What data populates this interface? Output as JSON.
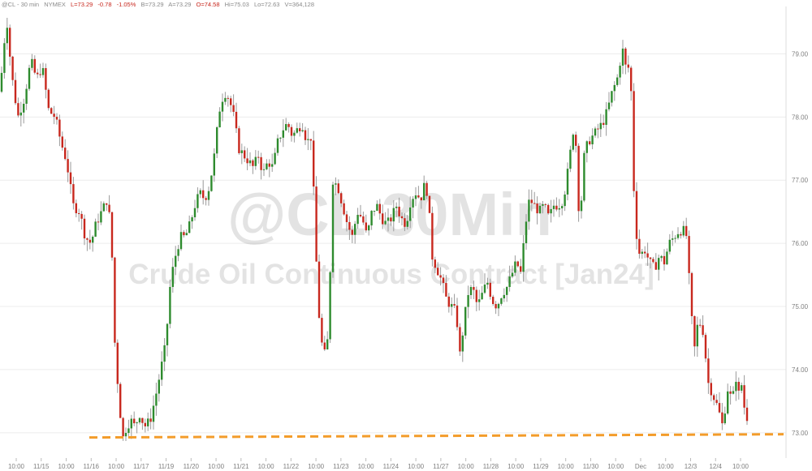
{
  "header": {
    "symbol": "@CL - 30 min",
    "exchange": "NYMEX",
    "last": "L=73.29",
    "change": "-0.78",
    "change_pct": "-1.05%",
    "bid": "B=73.29",
    "ask": "A=73.29",
    "open": "O=74.58",
    "high": "Hi=75.03",
    "low": "Lo=72.63",
    "volume": "V=364,128"
  },
  "watermark": {
    "line1": "@CL 30Min",
    "line2": "Crude Oil Continuous Contract [Jan24]"
  },
  "colors": {
    "up": "#2e8b2e",
    "down": "#c8281e",
    "wick": "#9a9a9a",
    "support": "#f39c2a",
    "grid": "#ececec",
    "axis_text": "#7f7f7f"
  },
  "chart_data": {
    "type": "candlestick",
    "ylim": [
      72.6,
      79.75
    ],
    "yticks": [
      "73.00",
      "74.00",
      "75.00",
      "76.00",
      "77.00",
      "78.00",
      "79.00"
    ],
    "xticks": [
      "10:00",
      "11/15",
      "10:00",
      "11/16",
      "10:00",
      "11/17",
      "11/19",
      "11/20",
      "10:00",
      "11/21",
      "10:00",
      "11/22",
      "10:00",
      "11/23",
      "10:00",
      "11/24",
      "10:00",
      "11/27",
      "10:00",
      "11/28",
      "10:00",
      "11/29",
      "10:00",
      "11/30",
      "10:00",
      "Dec",
      "10:00",
      "12/3",
      "12/4",
      "10:00"
    ],
    "support_level": 72.97,
    "price_path": [
      [
        0,
        78.4
      ],
      [
        8,
        79.6
      ],
      [
        14,
        78.7
      ],
      [
        22,
        78.0
      ],
      [
        30,
        78.3
      ],
      [
        38,
        78.9
      ],
      [
        45,
        78.6
      ],
      [
        52,
        78.8
      ],
      [
        60,
        78.1
      ],
      [
        68,
        78.0
      ],
      [
        75,
        77.6
      ],
      [
        82,
        77.3
      ],
      [
        90,
        76.6
      ],
      [
        98,
        76.5
      ],
      [
        105,
        76.1
      ],
      [
        112,
        76.0
      ],
      [
        118,
        76.3
      ],
      [
        125,
        76.5
      ],
      [
        132,
        76.7
      ],
      [
        137,
        76.2
      ],
      [
        141,
        74.5
      ],
      [
        146,
        73.6
      ],
      [
        151,
        72.9
      ],
      [
        156,
        73.1
      ],
      [
        161,
        73.2
      ],
      [
        166,
        73.1
      ],
      [
        172,
        73.3
      ],
      [
        178,
        73.1
      ],
      [
        185,
        73.2
      ],
      [
        192,
        73.6
      ],
      [
        198,
        74.0
      ],
      [
        204,
        74.4
      ],
      [
        210,
        75.4
      ],
      [
        216,
        75.8
      ],
      [
        222,
        76.1
      ],
      [
        228,
        76.1
      ],
      [
        234,
        76.3
      ],
      [
        240,
        76.6
      ],
      [
        246,
        76.8
      ],
      [
        252,
        76.7
      ],
      [
        258,
        76.9
      ],
      [
        264,
        77.4
      ],
      [
        270,
        78.1
      ],
      [
        276,
        78.4
      ],
      [
        282,
        78.3
      ],
      [
        288,
        78.0
      ],
      [
        294,
        77.5
      ],
      [
        300,
        77.4
      ],
      [
        306,
        77.3
      ],
      [
        312,
        77.2
      ],
      [
        318,
        77.4
      ],
      [
        324,
        77.1
      ],
      [
        330,
        77.3
      ],
      [
        336,
        77.2
      ],
      [
        342,
        77.6
      ],
      [
        348,
        77.8
      ],
      [
        354,
        77.9
      ],
      [
        360,
        77.7
      ],
      [
        366,
        77.8
      ],
      [
        372,
        77.9
      ],
      [
        378,
        77.6
      ],
      [
        384,
        77.7
      ],
      [
        388,
        76.1
      ],
      [
        394,
        74.6
      ],
      [
        399,
        74.2
      ],
      [
        404,
        74.5
      ],
      [
        410,
        77.0
      ],
      [
        416,
        76.9
      ],
      [
        422,
        76.6
      ],
      [
        428,
        76.3
      ],
      [
        434,
        76.1
      ],
      [
        440,
        76.5
      ],
      [
        446,
        76.4
      ],
      [
        452,
        76.1
      ],
      [
        458,
        76.5
      ],
      [
        464,
        76.6
      ],
      [
        470,
        76.4
      ],
      [
        476,
        76.3
      ],
      [
        482,
        76.4
      ],
      [
        488,
        76.6
      ],
      [
        494,
        76.4
      ],
      [
        500,
        76.3
      ],
      [
        506,
        76.7
      ],
      [
        512,
        76.8
      ],
      [
        518,
        76.7
      ],
      [
        522,
        76.9
      ],
      [
        527,
        76.8
      ],
      [
        532,
        75.8
      ],
      [
        538,
        75.6
      ],
      [
        544,
        75.4
      ],
      [
        550,
        75.1
      ],
      [
        556,
        75.0
      ],
      [
        562,
        74.9
      ],
      [
        566,
        74.2
      ],
      [
        570,
        74.6
      ],
      [
        576,
        75.2
      ],
      [
        582,
        75.3
      ],
      [
        588,
        75.0
      ],
      [
        594,
        75.2
      ],
      [
        600,
        75.4
      ],
      [
        606,
        75.1
      ],
      [
        612,
        75.0
      ],
      [
        618,
        75.2
      ],
      [
        624,
        75.3
      ],
      [
        630,
        75.5
      ],
      [
        636,
        75.7
      ],
      [
        642,
        75.5
      ],
      [
        646,
        76.2
      ],
      [
        652,
        76.7
      ],
      [
        658,
        76.6
      ],
      [
        664,
        76.5
      ],
      [
        670,
        76.6
      ],
      [
        676,
        76.4
      ],
      [
        682,
        76.6
      ],
      [
        688,
        76.6
      ],
      [
        694,
        76.7
      ],
      [
        700,
        77.2
      ],
      [
        706,
        77.8
      ],
      [
        710,
        77.5
      ],
      [
        714,
        76.1
      ],
      [
        718,
        77.3
      ],
      [
        724,
        77.6
      ],
      [
        730,
        77.7
      ],
      [
        736,
        77.8
      ],
      [
        742,
        77.9
      ],
      [
        748,
        78.1
      ],
      [
        754,
        78.4
      ],
      [
        760,
        78.6
      ],
      [
        764,
        78.9
      ],
      [
        768,
        79.1
      ],
      [
        772,
        78.6
      ],
      [
        776,
        79.0
      ],
      [
        779,
        77.5
      ],
      [
        782,
        76.3
      ],
      [
        788,
        75.8
      ],
      [
        794,
        75.9
      ],
      [
        800,
        75.7
      ],
      [
        806,
        75.6
      ],
      [
        812,
        75.8
      ],
      [
        818,
        75.7
      ],
      [
        824,
        76.0
      ],
      [
        830,
        76.1
      ],
      [
        836,
        76.2
      ],
      [
        842,
        76.2
      ],
      [
        846,
        76.1
      ],
      [
        850,
        75.1
      ],
      [
        855,
        74.3
      ],
      [
        860,
        74.8
      ],
      [
        866,
        74.6
      ],
      [
        872,
        73.8
      ],
      [
        878,
        73.6
      ],
      [
        884,
        73.4
      ],
      [
        890,
        73.1
      ],
      [
        896,
        73.7
      ],
      [
        902,
        73.5
      ],
      [
        906,
        73.9
      ],
      [
        910,
        73.6
      ],
      [
        914,
        73.8
      ],
      [
        918,
        73.2
      ],
      [
        922,
        73.29
      ]
    ]
  }
}
